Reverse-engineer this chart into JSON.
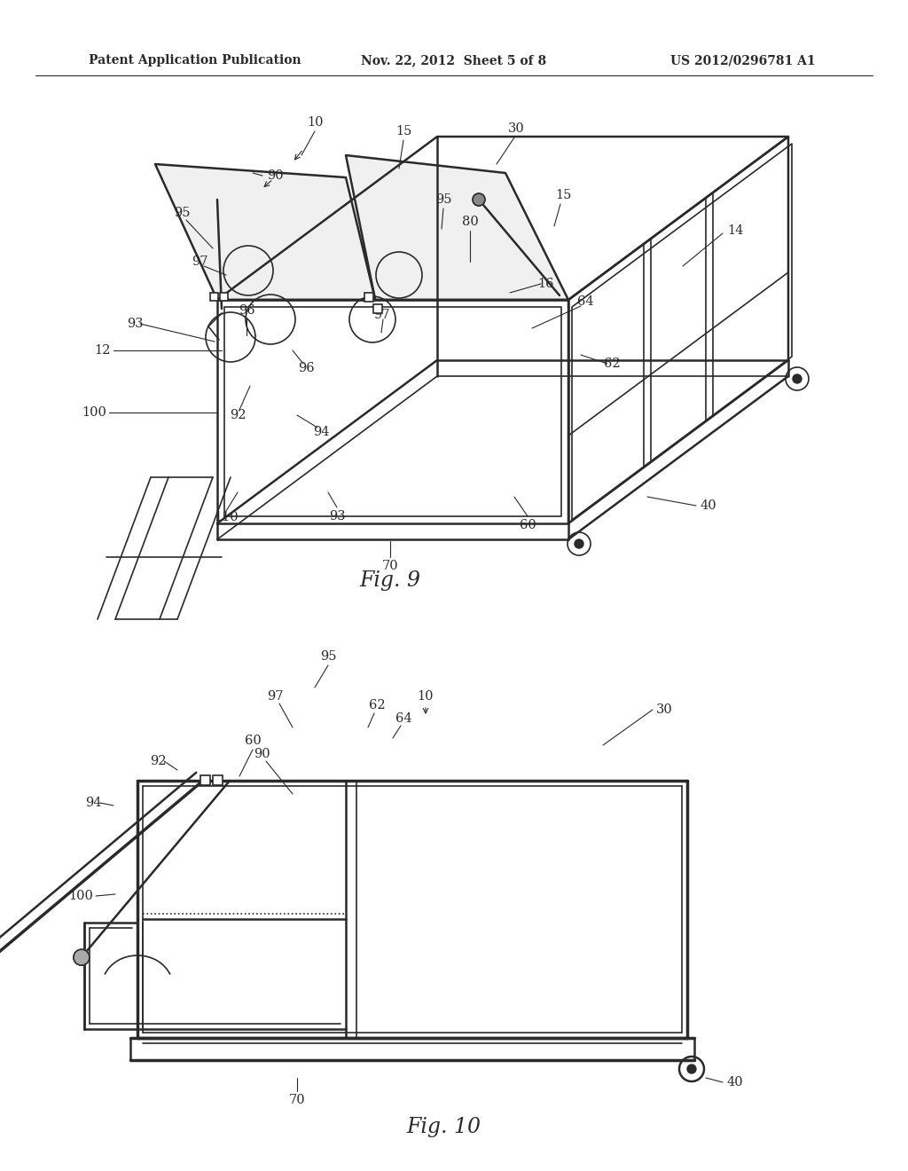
{
  "background_color": "#ffffff",
  "line_color": "#2a2a2a",
  "header_left": "Patent Application Publication",
  "header_center": "Nov. 22, 2012  Sheet 5 of 8",
  "header_right": "US 2012/0296781 A1",
  "fig9_title": "Fig. 9",
  "fig10_title": "Fig. 10"
}
